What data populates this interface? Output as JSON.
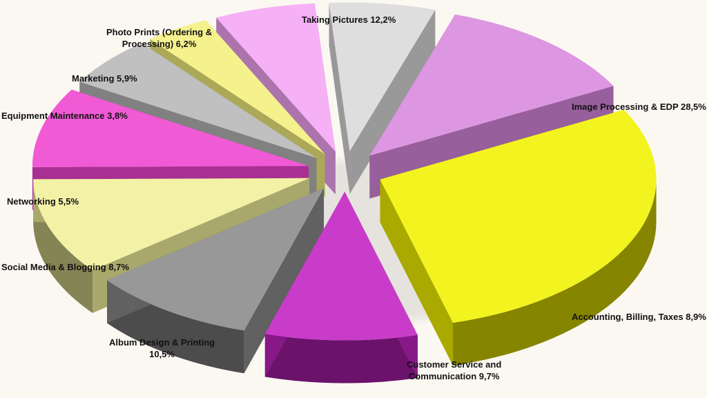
{
  "chart_data": {
    "type": "pie",
    "title": "",
    "style": "3d-exploded",
    "slices": [
      {
        "key": "image-processing",
        "label": "Image Processing & EDP 28,5%",
        "lines": [
          "Image Processing & EDP 28,5%"
        ],
        "value": 28.5,
        "color": "#f2f200"
      },
      {
        "key": "accounting",
        "label": "Accounting, Billing, Taxes 8,9%",
        "lines": [
          "Accounting, Billing, Taxes 8,9%"
        ],
        "value": 8.9,
        "color": "#c222c2"
      },
      {
        "key": "customer-service",
        "label": "Customer Service and Communication 9,7%",
        "lines": [
          "Customer Service and",
          "Communication 9,7%"
        ],
        "value": 9.7,
        "color": "#8a8a8a"
      },
      {
        "key": "album-design",
        "label": "Album Design & Printing 10,5%",
        "lines": [
          "Album Design & Printing",
          "10,5%"
        ],
        "value": 10.5,
        "color": "#f2f09a"
      },
      {
        "key": "social-media",
        "label": "Social Media & Blogging 8,7%",
        "lines": [
          "Social Media & Blogging 8,7%"
        ],
        "value": 8.7,
        "color": "#f044d0"
      },
      {
        "key": "networking",
        "label": "Networking 5,5%",
        "lines": [
          "Networking 5,5%"
        ],
        "value": 5.5,
        "color": "#b8b8b8"
      },
      {
        "key": "equipment-maintenance",
        "label": "Equipment Maintenance 3,8%",
        "lines": [
          "Equipment Maintenance 3,8%"
        ],
        "value": 3.8,
        "color": "#f4f07e"
      },
      {
        "key": "marketing",
        "label": "Marketing 5,9%",
        "lines": [
          "Marketing 5,9%"
        ],
        "value": 5.9,
        "color": "#f5a6f5"
      },
      {
        "key": "photo-prints",
        "label": "Photo Prints (Ordering & Processing) 6,2%",
        "lines": [
          "Photo Prints (Ordering &",
          "Processing) 6,2%"
        ],
        "value": 6.2,
        "color": "#dadada"
      },
      {
        "key": "taking-pictures",
        "label": "Taking Pictures 12,2%",
        "lines": [
          "Taking Pictures 12,2%"
        ],
        "value": 12.2,
        "color": "#d888de"
      }
    ]
  }
}
